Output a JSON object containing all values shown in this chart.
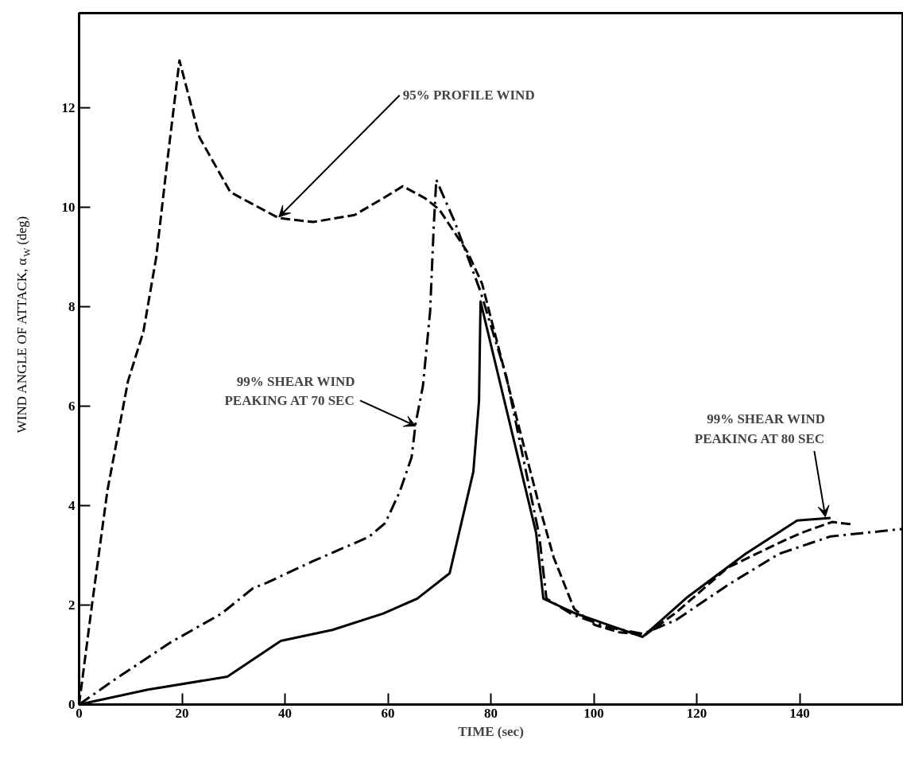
{
  "chart_data": {
    "type": "line",
    "xlabel": "TIME (sec)",
    "ylabel": "WIND ANGLE OF ATTACK, α$_{W}$ (deg)",
    "xlim": [
      0,
      160
    ],
    "ylim": [
      0,
      13.9
    ],
    "xticks": [
      0,
      20,
      40,
      60,
      80,
      100,
      120,
      140
    ],
    "yticks": [
      0,
      2,
      4,
      6,
      8,
      10,
      12
    ],
    "grid": false,
    "marker": "none",
    "series": [
      {
        "color": "#000000",
        "line_style": "dashed",
        "x": [
          0,
          2.5,
          5.5,
          9.5,
          12.5,
          15,
          17,
          19.5,
          23.4,
          29.4,
          38.8,
          45.4,
          53.5,
          59.1,
          62.9,
          67.2,
          70,
          75.5,
          78.3,
          82.8,
          89.4,
          92.2,
          96.2,
          100.2,
          105,
          110,
          116,
          126,
          136,
          140.3,
          146.3,
          150.3
        ],
        "values": [
          0,
          2,
          4.3,
          6.5,
          7.5,
          9,
          10.8,
          12.95,
          11.4,
          10.3,
          9.78,
          9.7,
          9.84,
          10.18,
          10.42,
          10.18,
          9.95,
          9.09,
          8.46,
          6.65,
          4.0,
          2.96,
          1.92,
          1.6,
          1.45,
          1.4,
          1.85,
          2.75,
          3.25,
          3.45,
          3.67,
          3.62
        ]
      },
      {
        "color": "#000000",
        "line_style": "dashdot",
        "x": [
          0,
          6.9,
          17.8,
          27.7,
          33.8,
          36.5,
          45.4,
          56.3,
          59.5,
          62.3,
          64.6,
          65.4,
          66.8,
          68.2,
          68.9,
          69.4,
          73,
          78,
          83,
          89.4,
          90.8,
          96,
          103,
          109.5,
          116,
          126,
          136,
          146,
          160
        ],
        "values": [
          0,
          0.5,
          1.25,
          1.83,
          2.34,
          2.45,
          2.88,
          3.37,
          3.65,
          4.28,
          4.97,
          5.66,
          6.4,
          7.9,
          9.6,
          10.55,
          9.7,
          8.3,
          6.6,
          3.4,
          2.13,
          1.8,
          1.55,
          1.42,
          1.7,
          2.4,
          3.03,
          3.38,
          3.53
        ]
      },
      {
        "color": "#000000",
        "line_style": "solid",
        "x": [
          0,
          13.4,
          28.8,
          39.2,
          49.2,
          59.1,
          65.7,
          72,
          76.6,
          77.7,
          78,
          88.8,
          90.2,
          96.2,
          109.5,
          118.2,
          129.5,
          139.5,
          146
        ],
        "values": [
          0,
          0.3,
          0.56,
          1.28,
          1.5,
          1.83,
          2.13,
          2.64,
          4.68,
          6.1,
          8.1,
          3.45,
          2.13,
          1.84,
          1.36,
          2.16,
          3.03,
          3.7,
          3.75
        ]
      }
    ],
    "annotations": [
      {
        "text": "95% PROFILE WIND",
        "x": 38.8,
        "y": 9.8
      },
      {
        "text": "99% SHEAR WIND\nPEAKING AT 70 SEC",
        "x": 65.4,
        "y": 5.6
      },
      {
        "text": "99% SHEAR WIND\nPEAKING AT 80 SEC",
        "x": 145,
        "y": 3.77
      }
    ]
  }
}
